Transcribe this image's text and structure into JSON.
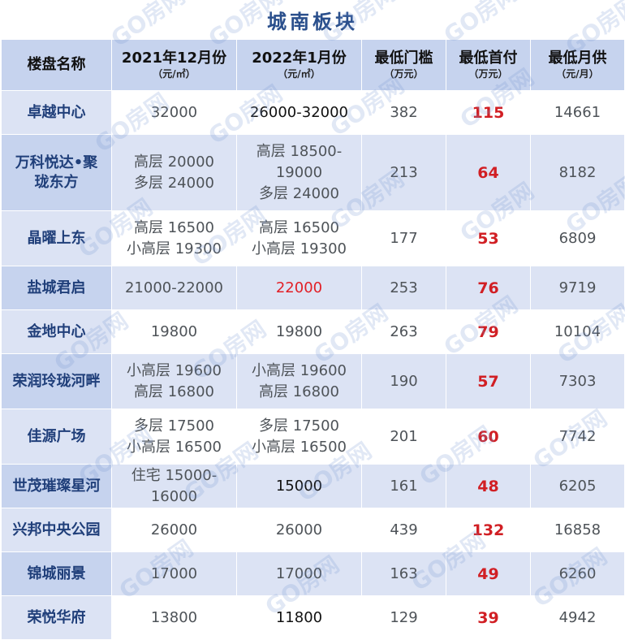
{
  "title": "城南板块",
  "headers": [
    {
      "label": "楼盘名称",
      "unit": ""
    },
    {
      "label": "2021年12月份",
      "unit": "（元/㎡）"
    },
    {
      "label": "2022年1月份",
      "unit": "（元/㎡）"
    },
    {
      "label": "最低门槛",
      "unit": "（万元）"
    },
    {
      "label": "最低首付",
      "unit": "（万元）"
    },
    {
      "label": "最低月供",
      "unit": "（元/月）"
    }
  ],
  "watermark": "GO房网",
  "rows": [
    {
      "name": [
        "卓越中心"
      ],
      "dec": [
        "32000"
      ],
      "jan": [
        "26000-32000"
      ],
      "jan_style": "dark",
      "threshold": "382",
      "down": "115",
      "monthly": "14661"
    },
    {
      "name": [
        "万科悦达•聚",
        "珑东方"
      ],
      "dec": [
        "高层 20000",
        "多层 24000"
      ],
      "jan": [
        "高层 18500-",
        "19000",
        "多层 24000"
      ],
      "jan_style": "",
      "threshold": "213",
      "down": "64",
      "monthly": "8182"
    },
    {
      "name": [
        "晶曜上东"
      ],
      "dec": [
        "高层 16500",
        "小高层 19300"
      ],
      "jan": [
        "高层 16500",
        "小高层 19300"
      ],
      "jan_style": "",
      "threshold": "177",
      "down": "53",
      "monthly": "6809"
    },
    {
      "name": [
        "盐城君启"
      ],
      "dec": [
        "21000-22000"
      ],
      "jan": [
        "22000"
      ],
      "jan_style": "red",
      "threshold": "253",
      "down": "76",
      "monthly": "9719"
    },
    {
      "name": [
        "金地中心"
      ],
      "dec": [
        "19800"
      ],
      "jan": [
        "19800"
      ],
      "jan_style": "",
      "threshold": "263",
      "down": "79",
      "monthly": "10104"
    },
    {
      "name": [
        "荣润玲珑河畔"
      ],
      "dec": [
        "小高层 19600",
        "高层 16800"
      ],
      "jan": [
        "小高层 19600",
        "高层 16800"
      ],
      "jan_style": "",
      "threshold": "190",
      "down": "57",
      "monthly": "7303"
    },
    {
      "name": [
        "佳源广场"
      ],
      "dec": [
        "多层  17500",
        "小高层  16500"
      ],
      "jan": [
        "多层  17500",
        "小高层  16500"
      ],
      "jan_style": "",
      "threshold": "201",
      "down": "60",
      "monthly": "7742"
    },
    {
      "name": [
        "世茂璀璨星河"
      ],
      "dec": [
        "住宅 15000-",
        "16000"
      ],
      "jan": [
        "15000"
      ],
      "jan_style": "dark",
      "threshold": "161",
      "down": "48",
      "monthly": "6205"
    },
    {
      "name": [
        "兴邦中央公园"
      ],
      "dec": [
        "26000"
      ],
      "jan": [
        "26000"
      ],
      "jan_style": "",
      "threshold": "439",
      "down": "132",
      "monthly": "16858"
    },
    {
      "name": [
        "锦城丽景"
      ],
      "dec": [
        "17000"
      ],
      "jan": [
        "17000"
      ],
      "jan_style": "",
      "threshold": "163",
      "down": "49",
      "monthly": "6260"
    },
    {
      "name": [
        "荣悦华府"
      ],
      "dec": [
        "13800"
      ],
      "jan": [
        "11800"
      ],
      "jan_style": "dark",
      "threshold": "129",
      "down": "39",
      "monthly": "4942"
    }
  ]
}
